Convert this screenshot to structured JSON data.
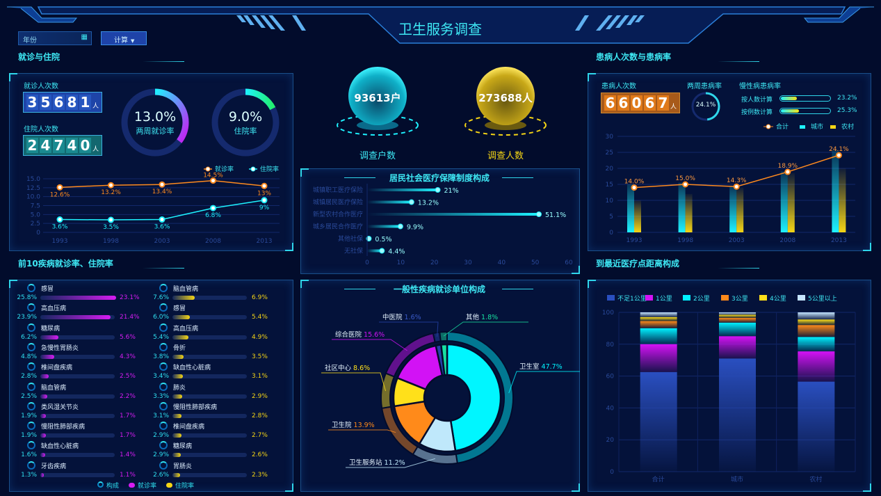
{
  "header": {
    "title": "卫生服务调查",
    "year_input": {
      "placeholder": "年份"
    },
    "calc_button": "计算"
  },
  "colors": {
    "accent": "#2fe0f0",
    "background": "#020c2c",
    "orange": "#ff8a1e",
    "cyan": "#1ef2ff",
    "magenta": "#d61cf2",
    "yellow": "#f5d515"
  },
  "visits": {
    "section_title": "就诊与住院",
    "visit_label": "就诊人次数",
    "visit_digits": [
      "3",
      "5",
      "6",
      "8",
      "1"
    ],
    "inpatient_label": "住院人次数",
    "inpatient_digits": [
      "2",
      "4",
      "7",
      "4",
      "0"
    ],
    "unit": "人",
    "gauge1": {
      "value": "13.0%",
      "label": "两周就诊率",
      "percent": 13
    },
    "gauge2": {
      "value": "9.0%",
      "label": "住院率",
      "percent": 9
    }
  },
  "spheres": {
    "households": {
      "value": "93613户",
      "label": "调查户数"
    },
    "people": {
      "value": "273688人",
      "label": "调查人数"
    }
  },
  "patients": {
    "section_title": "患病人次数与患病率",
    "count_label": "患病人次数",
    "digits": [
      "6",
      "6",
      "0",
      "6",
      "7"
    ],
    "unit": "人",
    "two_week_label": "两周患病率",
    "two_week_value": "24.1%",
    "two_week_percent": 24.1,
    "chronic_label": "慢性病患病率",
    "chronic": [
      {
        "label": "按人数计算",
        "value": "23.2%",
        "percent": 23.2
      },
      {
        "label": "按例数计算",
        "value": "25.3%",
        "percent": 25.3
      }
    ]
  },
  "diseases": {
    "section_title": "前10疾病就诊率、住院率",
    "legend": [
      "构成",
      "就诊率",
      "住院率"
    ],
    "visit_list": [
      [
        "感冒",
        "25.8%",
        "23.1%",
        23.1
      ],
      [
        "高血压病",
        "23.9%",
        "21.4%",
        21.4
      ],
      [
        "糖尿病",
        "6.2%",
        "5.6%",
        5.6
      ],
      [
        "急慢性胃肠炎",
        "4.8%",
        "4.3%",
        4.3
      ],
      [
        "椎间盘疾病",
        "2.8%",
        "2.5%",
        2.5
      ],
      [
        "脑血管病",
        "2.5%",
        "2.2%",
        2.2
      ],
      [
        "类风湿关节炎",
        "1.9%",
        "1.7%",
        1.7
      ],
      [
        "慢阻性肺部疾病",
        "1.9%",
        "1.7%",
        1.7
      ],
      [
        "缺血性心脏病",
        "1.6%",
        "1.4%",
        1.4
      ],
      [
        "牙齿疾病",
        "1.3%",
        "1.1%",
        1.1
      ]
    ],
    "inpatient_list": [
      [
        "脑血管病",
        "7.6%",
        "6.9%",
        6.9
      ],
      [
        "感冒",
        "6.0%",
        "5.4%",
        5.4
      ],
      [
        "高血压病",
        "5.4%",
        "4.9%",
        4.9
      ],
      [
        "骨折",
        "3.8%",
        "3.5%",
        3.5
      ],
      [
        "缺血性心脏病",
        "3.4%",
        "3.1%",
        3.1
      ],
      [
        "肺炎",
        "3.3%",
        "2.9%",
        2.9
      ],
      [
        "慢阻性肺部疾病",
        "3.1%",
        "2.8%",
        2.8
      ],
      [
        "椎间盘疾病",
        "2.9%",
        "2.7%",
        2.7
      ],
      [
        "糖尿病",
        "2.9%",
        "2.6%",
        2.6
      ],
      [
        "胃肠炎",
        "2.6%",
        "2.3%",
        2.3
      ]
    ]
  },
  "distance": {
    "section_title": "到最近医疗点距离构成"
  },
  "chart_data": [
    {
      "type": "line",
      "x": [
        "1993",
        "1998",
        "2003",
        "2008",
        "2013"
      ],
      "ylim": [
        0,
        15
      ],
      "yticks": [
        "0",
        "2.5",
        "5.0",
        "7.5",
        "10.0",
        "12.5",
        "15.0"
      ],
      "legend_position": "top-right",
      "series": [
        {
          "name": "就诊率",
          "values": [
            12.6,
            13.2,
            13.4,
            14.5,
            13
          ],
          "labels": [
            "12.6%",
            "13.2%",
            "13.4%",
            "14.5%",
            "13%"
          ],
          "color": "#ff8a1e"
        },
        {
          "name": "住院率",
          "values": [
            3.6,
            3.5,
            3.6,
            6.8,
            9
          ],
          "labels": [
            "3.6%",
            "3.5%",
            "3.6%",
            "6.8%",
            "9%"
          ],
          "color": "#1ef2ff"
        }
      ]
    },
    {
      "type": "bar",
      "title": "居民社会医疗保障制度构成",
      "orientation": "horizontal",
      "categories": [
        "城镇职工医疗保险",
        "城镇居民医疗保险",
        "新型农村合作医疗",
        "城乡居民合作医疗",
        "其他社保",
        "无社保"
      ],
      "values": [
        21,
        13.2,
        51.1,
        9.9,
        0.5,
        4.4
      ],
      "labels": [
        "21%",
        "13.2%",
        "51.1%",
        "9.9%",
        "0.5%",
        "4.4%"
      ],
      "xlim": [
        0,
        60
      ],
      "xticks": [
        "0",
        "10",
        "20",
        "30",
        "40",
        "50",
        "60"
      ]
    },
    {
      "type": "bar",
      "x": [
        "1993",
        "1998",
        "2003",
        "2008",
        "2013"
      ],
      "ylim": [
        0,
        30
      ],
      "yticks": [
        "0",
        "5",
        "10",
        "15",
        "20",
        "25",
        "30"
      ],
      "legend_position": "top-right",
      "series": [
        {
          "name": "城市",
          "values": [
            15,
            15.5,
            14.5,
            19,
            25.5
          ]
        },
        {
          "name": "农村",
          "values": [
            10,
            12,
            14,
            18.5,
            20
          ]
        },
        {
          "name": "合计",
          "type": "line",
          "values": [
            14.0,
            15.0,
            14.3,
            18.9,
            24.1
          ],
          "labels": [
            "14.0%",
            "15.0%",
            "14.3%",
            "18.9%",
            "24.1%"
          ]
        }
      ]
    },
    {
      "type": "pie",
      "title": "一般性疾病就诊单位构成",
      "donut": true,
      "slices": [
        {
          "name": "卫生室",
          "value": 47.7,
          "label": "47.7%",
          "color": "#00f6ff"
        },
        {
          "name": "卫生服务站",
          "value": 11.2,
          "label": "11.2%",
          "color": "#bfe8fb"
        },
        {
          "name": "卫生院",
          "value": 13.9,
          "label": "13.9%",
          "color": "#ff8a1a"
        },
        {
          "name": "社区中心",
          "value": 8.6,
          "label": "8.6%",
          "color": "#ffe01a"
        },
        {
          "name": "综合医院",
          "value": 15.6,
          "label": "15.6%",
          "color": "#d212f5"
        },
        {
          "name": "中医院",
          "value": 1.6,
          "label": "1.6%",
          "color": "#2642a8"
        },
        {
          "name": "其他",
          "value": 1.8,
          "label": "1.8%",
          "color": "#18e0a0"
        }
      ]
    },
    {
      "type": "bar",
      "stacked": true,
      "categories": [
        "合计",
        "城市",
        "农村"
      ],
      "ylim": [
        0,
        100
      ],
      "yticks": [
        "0",
        "20",
        "40",
        "60",
        "80",
        "100"
      ],
      "legend_position": "top",
      "series": [
        {
          "name": "不足1公里",
          "values": [
            62.5,
            71,
            56.5
          ],
          "color": "#2a4fc0"
        },
        {
          "name": "1公里",
          "values": [
            17.5,
            14,
            19
          ],
          "color": "#d412f5"
        },
        {
          "name": "2公里",
          "values": [
            10,
            8.5,
            9
          ],
          "color": "#00f0ff"
        },
        {
          "name": "3公里",
          "values": [
            4.5,
            3,
            7.5
          ],
          "color": "#ff8a1a"
        },
        {
          "name": "4公里",
          "values": [
            2.5,
            2,
            3.5
          ],
          "color": "#ffe01a"
        },
        {
          "name": "5公里以上",
          "values": [
            3,
            1.5,
            4.5
          ],
          "color": "#c6e6ff"
        }
      ]
    }
  ]
}
